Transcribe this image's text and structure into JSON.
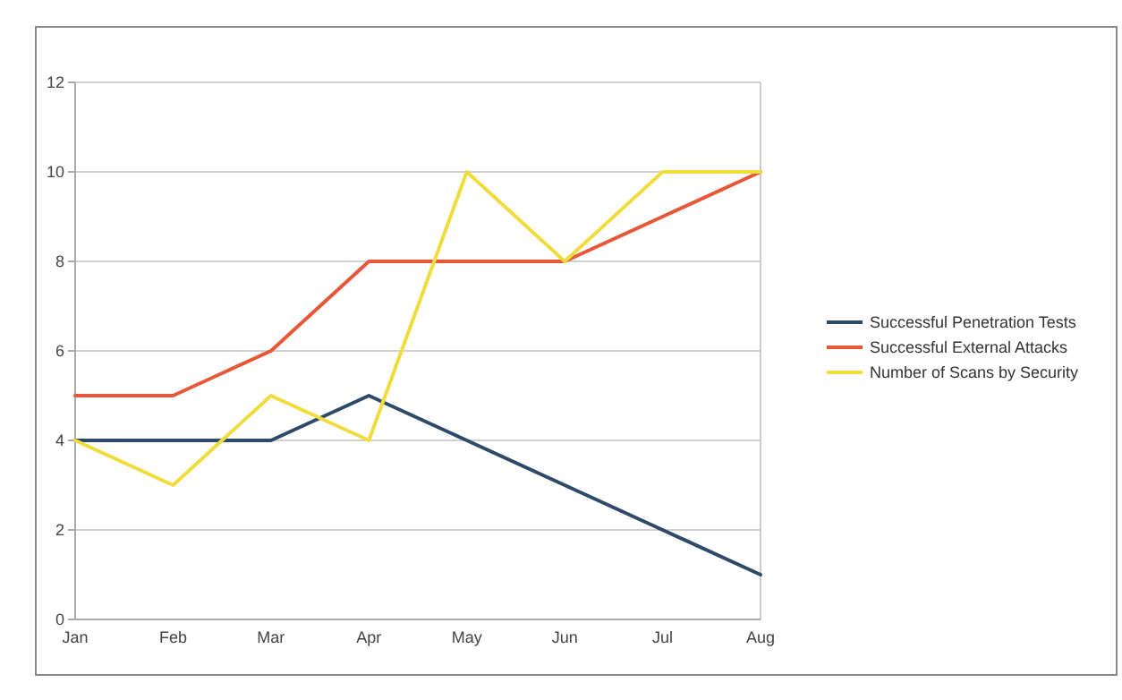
{
  "chart_data": {
    "type": "line",
    "categories": [
      "Jan",
      "Feb",
      "Mar",
      "Apr",
      "May",
      "Jun",
      "Jul",
      "Aug"
    ],
    "series": [
      {
        "name": "Successful Penetration Tests",
        "color": "#2e4a6b",
        "values": [
          4,
          4,
          4,
          5,
          4,
          3,
          2,
          1
        ]
      },
      {
        "name": "Successful External Attacks",
        "color": "#e8573a",
        "values": [
          5,
          5,
          6,
          8,
          8,
          8,
          9,
          10
        ]
      },
      {
        "name": "Number of Scans by Security",
        "color": "#f0dc3c",
        "values": [
          4,
          3,
          5,
          4,
          10,
          8,
          10,
          10
        ]
      }
    ],
    "ylim": [
      0,
      12
    ],
    "yticks": [
      0,
      2,
      4,
      6,
      8,
      10,
      12
    ],
    "grid": "y",
    "legend": "right",
    "marker": "none",
    "line_style": "solid"
  }
}
